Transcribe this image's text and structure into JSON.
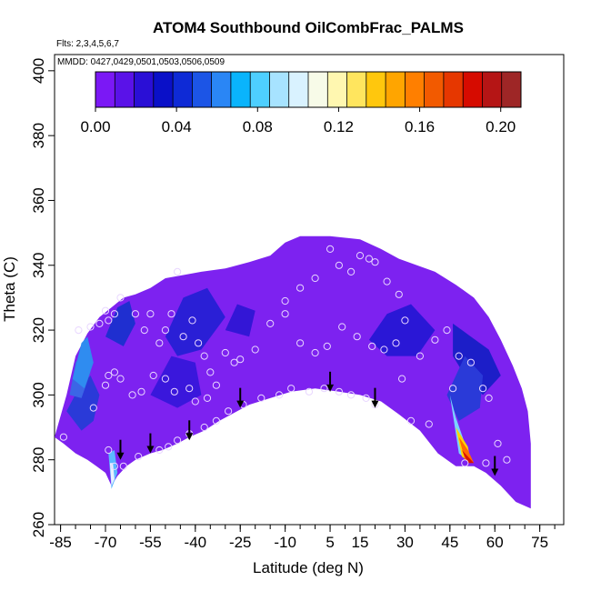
{
  "chart_data": {
    "type": "heatmap",
    "title": "ATOM4 Southbound OilCombFrac_PALMS",
    "flights_note": "Flts: 2,3,4,5,6,7",
    "dates_note": "MMDD: 0427,0429,0501,0503,0506,0509",
    "xlabel": "Latitude (deg N)",
    "ylabel": "Theta (C)",
    "xlim": [
      -87,
      83
    ],
    "ylim": [
      260,
      405
    ],
    "x_ticks": [
      -85,
      -70,
      -55,
      -40,
      -25,
      -10,
      5,
      15,
      30,
      45,
      60,
      75
    ],
    "y_ticks": [
      260,
      280,
      300,
      320,
      340,
      360,
      380,
      400
    ],
    "grid": false,
    "colorbar": {
      "range": [
        0,
        0.21
      ],
      "ticks": [
        "0.00",
        "0.04",
        "0.08",
        "0.12",
        "0.16",
        "0.20"
      ],
      "tick_values": [
        0,
        0.04,
        0.08,
        0.12,
        0.16,
        0.2
      ],
      "colors": [
        "#7b18f5",
        "#5a12e8",
        "#2a0fd6",
        "#0a10c8",
        "#0e2ad6",
        "#1c55e6",
        "#2a86f5",
        "#0ab4fc",
        "#4ecfff",
        "#a7e3ff",
        "#d9f2ff",
        "#f7fbe8",
        "#fff7b0",
        "#ffe55e",
        "#ffc70d",
        "#ffa500",
        "#ff7f00",
        "#f25a00",
        "#e63700",
        "#d60b00",
        "#b51515",
        "#9e2626"
      ]
    },
    "fill_color": "#7d22f0",
    "envelope_top": [
      [
        -87,
        287
      ],
      [
        -83,
        300
      ],
      [
        -80,
        312
      ],
      [
        -76,
        319
      ],
      [
        -72,
        324
      ],
      [
        -68,
        327
      ],
      [
        -64,
        330
      ],
      [
        -60,
        331
      ],
      [
        -55,
        333
      ],
      [
        -50,
        336
      ],
      [
        -44,
        337
      ],
      [
        -38,
        338
      ],
      [
        -30,
        339
      ],
      [
        -22,
        341
      ],
      [
        -15,
        343
      ],
      [
        -10,
        347
      ],
      [
        -5,
        349
      ],
      [
        5,
        349
      ],
      [
        15,
        348
      ],
      [
        22,
        345
      ],
      [
        28,
        342
      ],
      [
        34,
        340
      ],
      [
        40,
        338
      ],
      [
        47,
        334
      ],
      [
        53,
        330
      ],
      [
        58,
        324
      ],
      [
        62,
        317
      ],
      [
        66,
        309
      ],
      [
        69,
        302
      ],
      [
        71,
        295
      ],
      [
        72,
        285
      ],
      [
        72,
        265
      ]
    ],
    "envelope_bottom": [
      [
        72,
        265
      ],
      [
        67,
        267
      ],
      [
        62,
        272
      ],
      [
        57,
        276
      ],
      [
        53,
        278
      ],
      [
        47,
        278
      ],
      [
        41,
        282
      ],
      [
        35,
        289
      ],
      [
        28,
        294
      ],
      [
        22,
        298
      ],
      [
        15,
        300
      ],
      [
        8,
        301
      ],
      [
        0,
        302
      ],
      [
        -8,
        301
      ],
      [
        -15,
        299
      ],
      [
        -22,
        297
      ],
      [
        -28,
        294
      ],
      [
        -32,
        292
      ],
      [
        -37,
        289
      ],
      [
        -42,
        287
      ],
      [
        -46,
        285
      ],
      [
        -51,
        283
      ],
      [
        -55,
        282
      ],
      [
        -60,
        280
      ],
      [
        -63,
        278
      ],
      [
        -66,
        275
      ],
      [
        -68,
        272
      ],
      [
        -70,
        276
      ],
      [
        -73,
        278
      ],
      [
        -76,
        280
      ],
      [
        -80,
        282
      ],
      [
        -84,
        285
      ],
      [
        -87,
        287
      ]
    ],
    "patches": [
      {
        "color": "#2a3ad8",
        "poly": [
          [
            -83,
            295
          ],
          [
            -79,
            302
          ],
          [
            -75,
            306
          ],
          [
            -72,
            300
          ],
          [
            -74,
            292
          ],
          [
            -78,
            289
          ]
        ]
      },
      {
        "color": "#3b66e6",
        "poly": [
          [
            -82,
            300
          ],
          [
            -80,
            310
          ],
          [
            -77,
            314
          ],
          [
            -75,
            307
          ],
          [
            -78,
            299
          ]
        ]
      },
      {
        "color": "#2f8cf0",
        "poly": [
          [
            -81,
            305
          ],
          [
            -78,
            316
          ],
          [
            -76,
            318
          ],
          [
            -74,
            310
          ],
          [
            -77,
            302
          ]
        ]
      },
      {
        "color": "#1f2fd0",
        "poly": [
          [
            -70,
            318
          ],
          [
            -66,
            327
          ],
          [
            -62,
            329
          ],
          [
            -60,
            322
          ],
          [
            -64,
            315
          ]
        ]
      },
      {
        "color": "#2a1fd6",
        "poly": [
          [
            -50,
            318
          ],
          [
            -44,
            330
          ],
          [
            -36,
            333
          ],
          [
            -30,
            324
          ],
          [
            -38,
            314
          ],
          [
            -46,
            312
          ]
        ]
      },
      {
        "color": "#3a17dc",
        "poly": [
          [
            -55,
            300
          ],
          [
            -48,
            312
          ],
          [
            -40,
            310
          ],
          [
            -38,
            300
          ],
          [
            -46,
            296
          ]
        ]
      },
      {
        "color": "#3316d6",
        "poly": [
          [
            -30,
            320
          ],
          [
            -26,
            328
          ],
          [
            -20,
            326
          ],
          [
            -22,
            318
          ]
        ]
      },
      {
        "color": "#2a17d6",
        "poly": [
          [
            18,
            317
          ],
          [
            24,
            325
          ],
          [
            32,
            328
          ],
          [
            40,
            320
          ],
          [
            34,
            312
          ],
          [
            24,
            312
          ]
        ]
      },
      {
        "color": "#1c1ec8",
        "poly": [
          [
            46,
            322
          ],
          [
            52,
            318
          ],
          [
            58,
            314
          ],
          [
            62,
            306
          ],
          [
            56,
            300
          ],
          [
            50,
            306
          ],
          [
            46,
            312
          ]
        ]
      },
      {
        "color": "#2a3ad8",
        "poly": [
          [
            44,
            300
          ],
          [
            50,
            312
          ],
          [
            56,
            306
          ],
          [
            55,
            296
          ],
          [
            48,
            292
          ]
        ]
      },
      {
        "color": "#7ad3ff",
        "poly": [
          [
            45,
            300
          ],
          [
            48,
            282
          ],
          [
            52,
            279
          ],
          [
            50,
            285
          ],
          [
            47,
            293
          ]
        ]
      },
      {
        "color": "#ffd400",
        "poly": [
          [
            47,
            290
          ],
          [
            49,
            281
          ],
          [
            52,
            279
          ],
          [
            51,
            284
          ]
        ]
      },
      {
        "color": "#ff6a00",
        "poly": [
          [
            48,
            287
          ],
          [
            50,
            280
          ],
          [
            53,
            279
          ],
          [
            51,
            283
          ]
        ]
      },
      {
        "color": "#d91200",
        "poly": [
          [
            49,
            283
          ],
          [
            51,
            279
          ],
          [
            53,
            279
          ]
        ]
      },
      {
        "color": "#5ab8ff",
        "poly": [
          [
            -69,
            282
          ],
          [
            -67,
            283
          ],
          [
            -66,
            276
          ],
          [
            -68,
            271
          ]
        ]
      },
      {
        "color": "#e8f0ff",
        "poly": [
          [
            -68.5,
            279
          ],
          [
            -67.5,
            279
          ],
          [
            -67,
            274
          ],
          [
            -68,
            272
          ]
        ]
      }
    ],
    "points": [
      [
        -84,
        287
      ],
      [
        -79,
        320
      ],
      [
        -75,
        321
      ],
      [
        -72,
        322
      ],
      [
        -70,
        326
      ],
      [
        -69,
        323
      ],
      [
        -67,
        325
      ],
      [
        -65,
        330
      ],
      [
        -60,
        325
      ],
      [
        -57,
        320
      ],
      [
        -55,
        325
      ],
      [
        -52,
        316
      ],
      [
        -50,
        320
      ],
      [
        -48,
        325
      ],
      [
        -46,
        338
      ],
      [
        -44,
        318
      ],
      [
        -41,
        323
      ],
      [
        -39,
        316
      ],
      [
        -37,
        312
      ],
      [
        -35,
        307
      ],
      [
        -33,
        303
      ],
      [
        -36,
        299
      ],
      [
        -40,
        298
      ],
      [
        -42,
        302
      ],
      [
        -47,
        301
      ],
      [
        -50,
        305
      ],
      [
        -54,
        306
      ],
      [
        -58,
        301
      ],
      [
        -61,
        300
      ],
      [
        -65,
        305
      ],
      [
        -67,
        307
      ],
      [
        -69,
        306
      ],
      [
        -70,
        303
      ],
      [
        -74,
        296
      ],
      [
        -69,
        283
      ],
      [
        -67,
        278
      ],
      [
        -64,
        278
      ],
      [
        -59,
        281
      ],
      [
        -52,
        283
      ],
      [
        -49,
        284
      ],
      [
        -46,
        286
      ],
      [
        -42,
        288
      ],
      [
        -37,
        290
      ],
      [
        -33,
        292
      ],
      [
        -29,
        295
      ],
      [
        -24,
        297
      ],
      [
        -18,
        299
      ],
      [
        -12,
        300
      ],
      [
        -8,
        302
      ],
      [
        -2,
        301
      ],
      [
        3,
        302
      ],
      [
        8,
        301
      ],
      [
        12,
        300
      ],
      [
        17,
        299
      ],
      [
        20,
        297
      ],
      [
        -30,
        313
      ],
      [
        -27,
        310
      ],
      [
        -25,
        311
      ],
      [
        -20,
        314
      ],
      [
        -15,
        322
      ],
      [
        -10,
        329
      ],
      [
        -5,
        333
      ],
      [
        0,
        336
      ],
      [
        5,
        345
      ],
      [
        8,
        340
      ],
      [
        12,
        338
      ],
      [
        15,
        343
      ],
      [
        18,
        342
      ],
      [
        20,
        341
      ],
      [
        24,
        335
      ],
      [
        28,
        331
      ],
      [
        30,
        323
      ],
      [
        27,
        316
      ],
      [
        23,
        314
      ],
      [
        19,
        315
      ],
      [
        14,
        318
      ],
      [
        9,
        321
      ],
      [
        4,
        315
      ],
      [
        0,
        313
      ],
      [
        -5,
        316
      ],
      [
        -10,
        325
      ],
      [
        35,
        312
      ],
      [
        40,
        317
      ],
      [
        44,
        320
      ],
      [
        48,
        312
      ],
      [
        52,
        310
      ],
      [
        56,
        302
      ],
      [
        58,
        299
      ],
      [
        61,
        285
      ],
      [
        64,
        280
      ],
      [
        57,
        279
      ],
      [
        50,
        279
      ],
      [
        46,
        302
      ],
      [
        38,
        291
      ],
      [
        32,
        292
      ],
      [
        29,
        305
      ]
    ],
    "arrows": [
      -65,
      -55,
      -42,
      -25,
      5,
      20,
      60
    ],
    "arrow_tip_theta": [
      280,
      282,
      286,
      296,
      301,
      296,
      275
    ]
  }
}
